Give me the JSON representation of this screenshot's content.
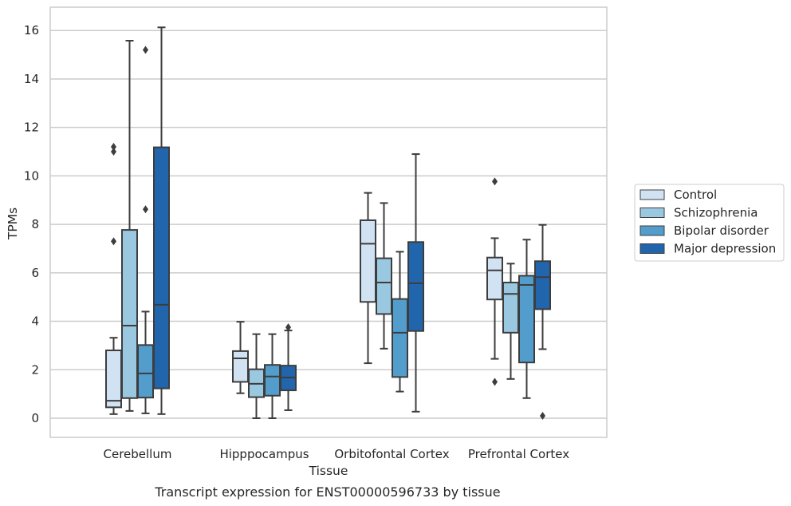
{
  "chart_data": {
    "type": "box",
    "title": "",
    "caption": "Transcript expression for ENST00000596733 by tissue",
    "xlabel": "Tissue",
    "ylabel": "TPMs",
    "ylim": [
      -0.8,
      16.95
    ],
    "yticks": [
      0,
      2,
      4,
      6,
      8,
      10,
      12,
      14,
      16
    ],
    "grid": true,
    "legend_position": "right",
    "categories": [
      "Cerebellum",
      "Hipppocampus",
      "Orbitofontal Cortex",
      "Prefrontal Cortex"
    ],
    "series": [
      {
        "name": "Control",
        "color": "#d1e2f2",
        "boxes": [
          {
            "whislo": 0.17,
            "q1": 0.45,
            "med": 0.72,
            "q3": 2.8,
            "whishi": 3.32,
            "fliers": [
              7.3,
              11.0,
              11.2
            ]
          },
          {
            "whislo": 1.03,
            "q1": 1.5,
            "med": 2.47,
            "q3": 2.77,
            "whishi": 3.98,
            "fliers": []
          },
          {
            "whislo": 2.27,
            "q1": 4.8,
            "med": 7.2,
            "q3": 8.17,
            "whishi": 9.3,
            "fliers": []
          },
          {
            "whislo": 2.45,
            "q1": 4.9,
            "med": 6.1,
            "q3": 6.63,
            "whishi": 7.43,
            "fliers": [
              1.5,
              9.77
            ]
          }
        ]
      },
      {
        "name": "Schizophrenia",
        "color": "#9ac8e0",
        "boxes": [
          {
            "whislo": 0.3,
            "q1": 0.83,
            "med": 3.82,
            "q3": 7.77,
            "whishi": 15.58,
            "fliers": []
          },
          {
            "whislo": 0.0,
            "q1": 0.87,
            "med": 1.42,
            "q3": 2.02,
            "whishi": 3.47,
            "fliers": []
          },
          {
            "whislo": 2.87,
            "q1": 4.3,
            "med": 5.6,
            "q3": 6.6,
            "whishi": 8.88,
            "fliers": []
          },
          {
            "whislo": 1.62,
            "q1": 3.53,
            "med": 5.13,
            "q3": 5.6,
            "whishi": 6.38,
            "fliers": []
          }
        ]
      },
      {
        "name": "Bipolar disorder",
        "color": "#529dcc",
        "boxes": [
          {
            "whislo": 0.2,
            "q1": 0.85,
            "med": 1.85,
            "q3": 3.02,
            "whishi": 4.4,
            "fliers": [
              8.62,
              15.2
            ]
          },
          {
            "whislo": 0.0,
            "q1": 0.93,
            "med": 1.72,
            "q3": 2.2,
            "whishi": 3.47,
            "fliers": []
          },
          {
            "whislo": 1.1,
            "q1": 1.7,
            "med": 3.53,
            "q3": 4.92,
            "whishi": 6.87,
            "fliers": []
          },
          {
            "whislo": 0.83,
            "q1": 2.3,
            "med": 5.5,
            "q3": 5.88,
            "whishi": 7.37,
            "fliers": []
          }
        ]
      },
      {
        "name": "Major depression",
        "color": "#2166ac",
        "boxes": [
          {
            "whislo": 0.17,
            "q1": 1.23,
            "med": 4.68,
            "q3": 11.18,
            "whishi": 16.13,
            "fliers": []
          },
          {
            "whislo": 0.33,
            "q1": 1.15,
            "med": 1.68,
            "q3": 2.17,
            "whishi": 3.62,
            "fliers": [
              3.75
            ]
          },
          {
            "whislo": 0.27,
            "q1": 3.6,
            "med": 5.57,
            "q3": 7.27,
            "whishi": 10.9,
            "fliers": []
          },
          {
            "whislo": 2.85,
            "q1": 4.5,
            "med": 5.82,
            "q3": 6.48,
            "whishi": 7.98,
            "fliers": [
              0.1
            ]
          }
        ]
      }
    ]
  }
}
